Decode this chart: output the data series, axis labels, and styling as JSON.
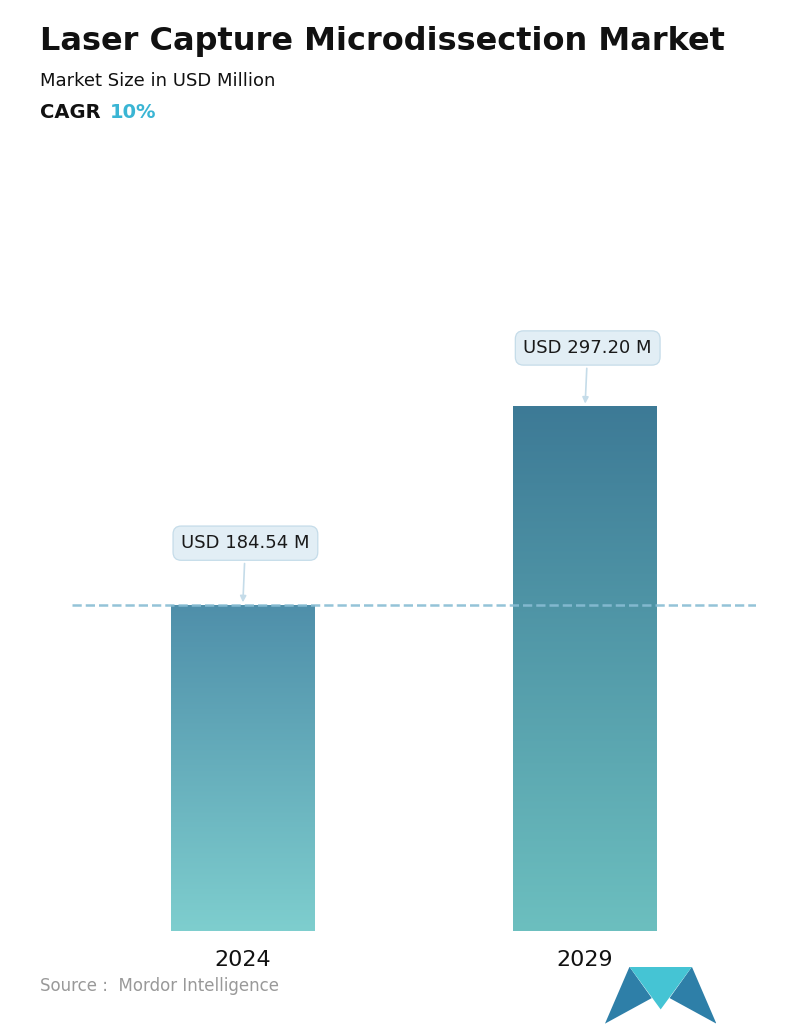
{
  "title": "Laser Capture Microdissection Market",
  "subtitle": "Market Size in USD Million",
  "cagr_label": "CAGR  ",
  "cagr_value": "10%",
  "cagr_color": "#3ab5d4",
  "categories": [
    "2024",
    "2029"
  ],
  "values": [
    184.54,
    297.2
  ],
  "labels": [
    "USD 184.54 M",
    "USD 297.20 M"
  ],
  "bar_color_top_1": "#4f8faa",
  "bar_color_bottom_1": "#7ecece",
  "bar_color_top_2": "#3d7a96",
  "bar_color_bottom_2": "#6cbfbf",
  "dashed_line_color": "#88bdd4",
  "dashed_line_value": 184.54,
  "annotation_box_color": "#e2eef5",
  "annotation_box_edge": "#c5dce9",
  "source_text": "Source :  Mordor Intelligence",
  "source_color": "#999999",
  "background_color": "#ffffff",
  "title_fontsize": 23,
  "subtitle_fontsize": 13,
  "cagr_fontsize": 14,
  "label_fontsize": 13,
  "tick_fontsize": 16,
  "source_fontsize": 12,
  "ylim": [
    0,
    340
  ],
  "bar_width": 0.42
}
